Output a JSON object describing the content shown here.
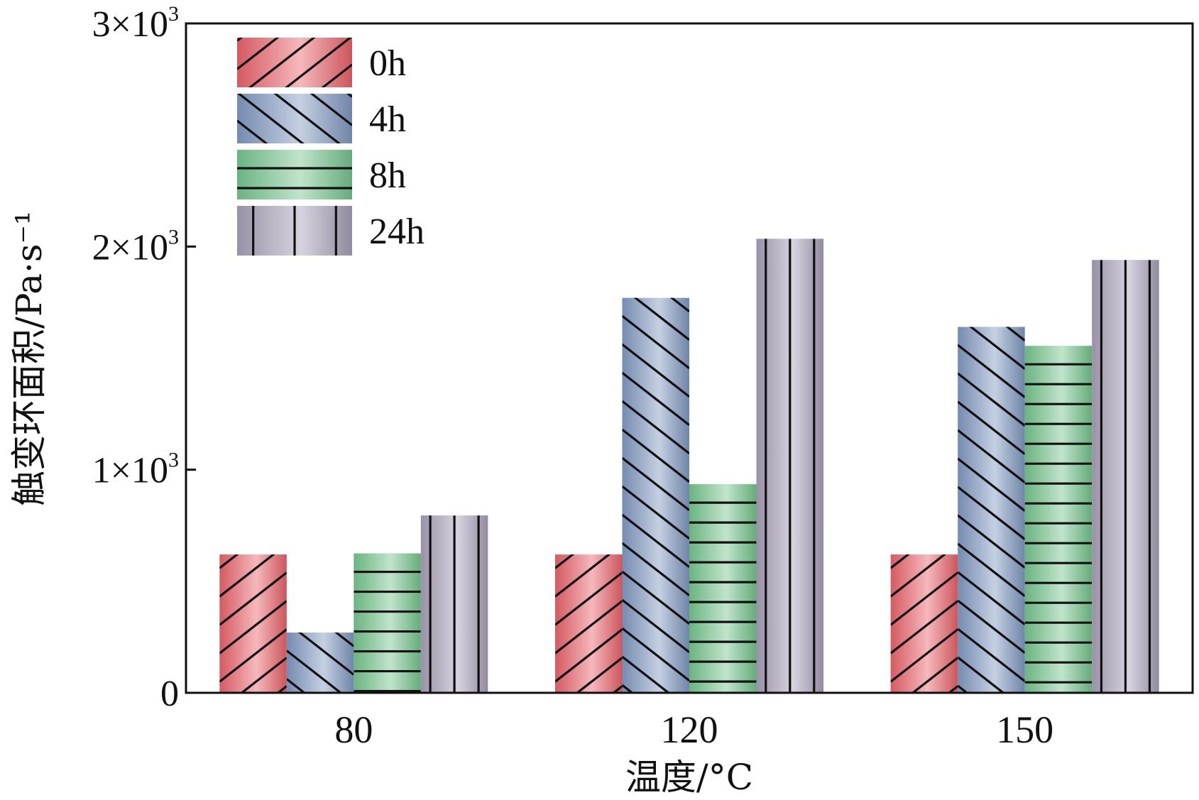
{
  "chart_data": {
    "type": "bar",
    "title": "",
    "xlabel": "温度/°C",
    "ylabel": "触变环面积/Pa·s⁻¹",
    "categories": [
      "80",
      "120",
      "150"
    ],
    "ylim": [
      0,
      3000
    ],
    "yticks": [
      {
        "value": 0,
        "label": "0"
      },
      {
        "value": 1000,
        "label": "1×10",
        "exp": "3"
      },
      {
        "value": 2000,
        "label": "2×10",
        "exp": "3"
      },
      {
        "value": 3000,
        "label": "3×10",
        "exp": "3"
      }
    ],
    "grid": false,
    "legend_position": "top-left",
    "series": [
      {
        "name": "0h",
        "values": [
          620,
          620,
          620
        ],
        "color": "#e8626a",
        "pattern": "diagonal-up"
      },
      {
        "name": "4h",
        "values": [
          270,
          1770,
          1640
        ],
        "color": "#7f97bf",
        "pattern": "diagonal-down"
      },
      {
        "name": "8h",
        "values": [
          625,
          935,
          1555
        ],
        "color": "#74c48c",
        "pattern": "horizontal"
      },
      {
        "name": "24h",
        "values": [
          795,
          2035,
          1940
        ],
        "color": "#a69eb6",
        "pattern": "vertical"
      }
    ]
  }
}
